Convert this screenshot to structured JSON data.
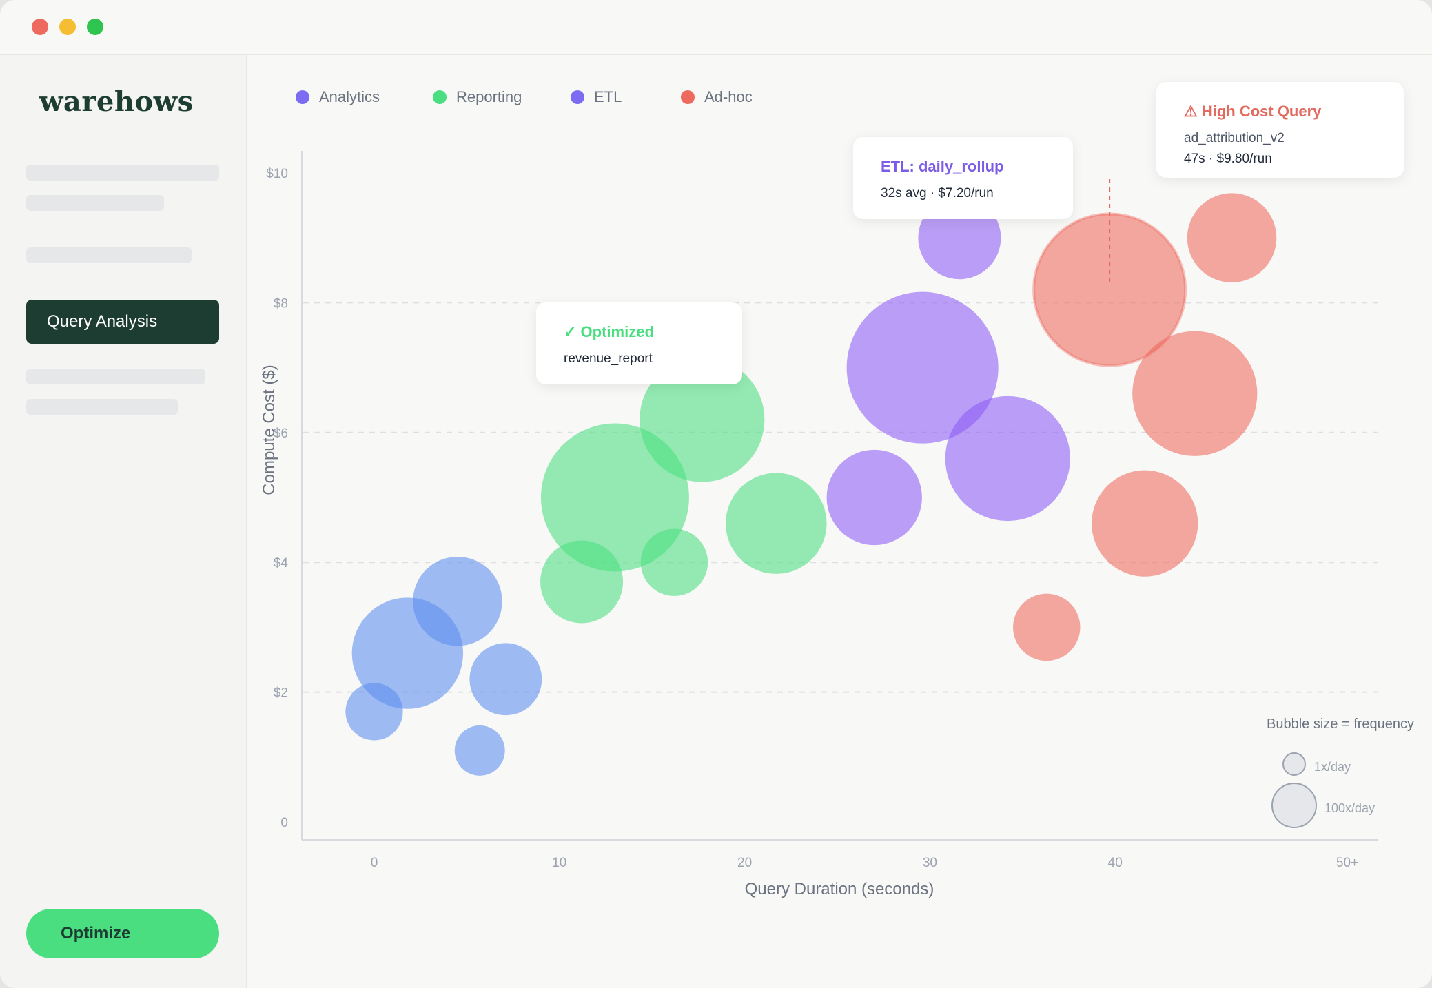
{
  "app": {
    "logo": "warehows"
  },
  "sidebar": {
    "active_item": "Query Analysis",
    "action_button": "Optimize"
  },
  "legend": [
    {
      "label": "Analytics",
      "color": "#7c6cf2"
    },
    {
      "label": "Reporting",
      "color": "#4ade80"
    },
    {
      "label": "ETL",
      "color": "#7c6cf2"
    },
    {
      "label": "Ad-hoc",
      "color": "#ee6a5f"
    }
  ],
  "tooltips": {
    "etl": {
      "title": "ETL: daily_rollup",
      "line": "32s avg · $7.20/run"
    },
    "optimized": {
      "title": "✓ Optimized",
      "line": "revenue_report"
    },
    "high_cost": {
      "title": "⚠ High Cost Query",
      "query": "ad_attribution_v2",
      "line": "47s · $9.80/run"
    }
  },
  "size_key": {
    "title": "Bubble size = frequency",
    "small": "1x/day",
    "large": "100x/day"
  },
  "chart_data": {
    "type": "scatter",
    "xlabel": "Query Duration (seconds)",
    "ylabel": "Compute Cost ($)",
    "x_ticks": [
      "0",
      "10",
      "20",
      "30",
      "40",
      "50+"
    ],
    "y_ticks": [
      "0",
      "$2",
      "$4",
      "$6",
      "$8",
      "$10"
    ],
    "xlim": [
      0,
      50
    ],
    "ylim": [
      0,
      10
    ],
    "grid": "horizontal dashed",
    "legend_position": "top-left",
    "series": [
      {
        "name": "Analytics",
        "color": "#5b8def",
        "points": [
          {
            "x": 0,
            "y": 1.7,
            "size": 10
          },
          {
            "x": 1.8,
            "y": 2.6,
            "size": 50
          },
          {
            "x": 4.5,
            "y": 3.4,
            "size": 30
          },
          {
            "x": 5.7,
            "y": 1.1,
            "size": 7
          },
          {
            "x": 7.1,
            "y": 2.2,
            "size": 18
          }
        ]
      },
      {
        "name": "Reporting",
        "color": "#4ade80",
        "points": [
          {
            "x": 11.2,
            "y": 3.7,
            "size": 25
          },
          {
            "x": 13.0,
            "y": 5.0,
            "size": 95
          },
          {
            "x": 16.2,
            "y": 4.0,
            "size": 15
          },
          {
            "x": 17.7,
            "y": 6.2,
            "size": 65
          },
          {
            "x": 21.7,
            "y": 4.6,
            "size": 40
          }
        ]
      },
      {
        "name": "ETL",
        "color": "#8b5cf6",
        "points": [
          {
            "x": 27.0,
            "y": 5.0,
            "size": 35
          },
          {
            "x": 29.6,
            "y": 7.0,
            "size": 100
          },
          {
            "x": 31.6,
            "y": 9.0,
            "size": 25
          },
          {
            "x": 34.2,
            "y": 5.6,
            "size": 65
          }
        ]
      },
      {
        "name": "Ad-hoc",
        "color": "#ee6a5f",
        "points": [
          {
            "x": 36.3,
            "y": 3.0,
            "size": 15
          },
          {
            "x": 39.7,
            "y": 8.2,
            "size": 100
          },
          {
            "x": 41.6,
            "y": 4.6,
            "size": 45
          },
          {
            "x": 44.3,
            "y": 6.6,
            "size": 65
          },
          {
            "x": 46.3,
            "y": 9.0,
            "size": 30
          }
        ]
      }
    ]
  }
}
